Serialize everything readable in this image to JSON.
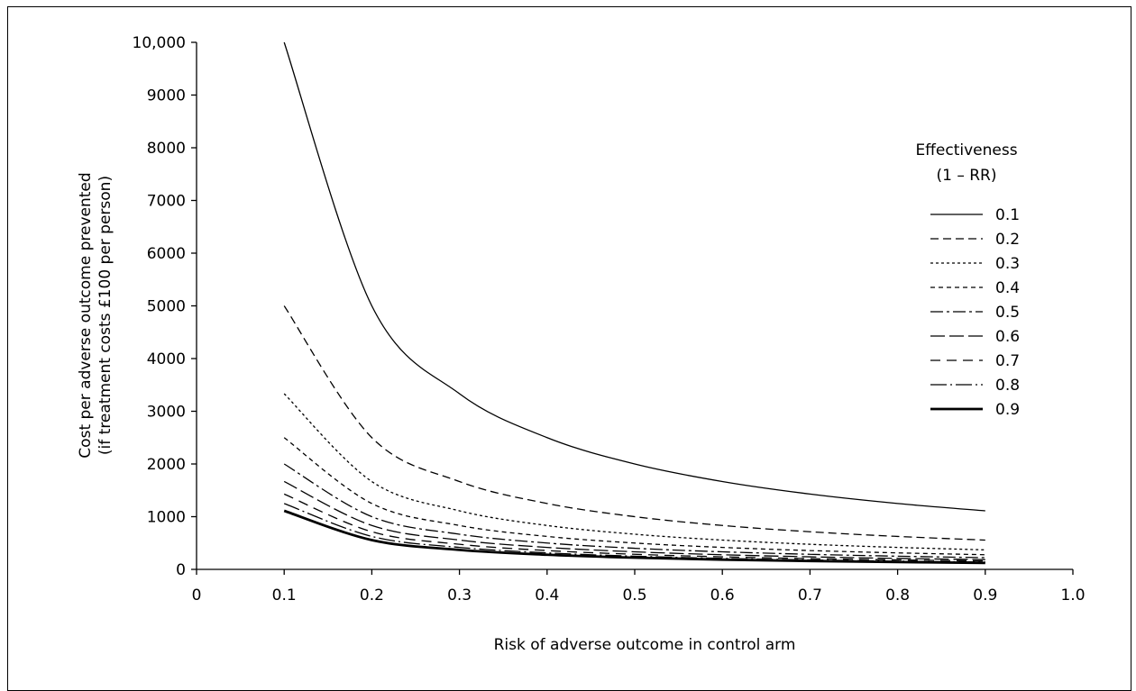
{
  "chart_data": {
    "type": "line",
    "title": "",
    "xlabel": "Risk of adverse outcome in control arm",
    "ylabel": [
      "Cost per adverse outcome prevented",
      "(if treatment costs £100 per person)"
    ],
    "xlim": [
      0,
      1.0
    ],
    "ylim": [
      0,
      10000
    ],
    "x_ticks": [
      0,
      0.1,
      0.2,
      0.3,
      0.4,
      0.5,
      0.6,
      0.7,
      0.8,
      0.9,
      1.0
    ],
    "x_tick_labels": [
      "0",
      "0.1",
      "0.2",
      "0.3",
      "0.4",
      "0.5",
      "0.6",
      "0.7",
      "0.8",
      "0.9",
      "1.0"
    ],
    "y_ticks": [
      0,
      1000,
      2000,
      3000,
      4000,
      5000,
      6000,
      7000,
      8000,
      9000,
      10000
    ],
    "y_tick_labels": [
      "0",
      "1000",
      "2000",
      "3000",
      "4000",
      "5000",
      "6000",
      "7000",
      "8000",
      "9000",
      "10,000"
    ],
    "grid": false,
    "legend": {
      "title_line1": "Effectiveness",
      "title_line2": "(1 – RR)",
      "placement": "right"
    },
    "x": [
      0.1,
      0.2,
      0.3,
      0.4,
      0.5,
      0.6,
      0.7,
      0.8,
      0.9
    ],
    "series": [
      {
        "name": "0.1",
        "values": [
          10000,
          5000,
          3333,
          2500,
          2000,
          1667,
          1429,
          1250,
          1111
        ]
      },
      {
        "name": "0.2",
        "values": [
          5000,
          2500,
          1667,
          1250,
          1000,
          833,
          714,
          625,
          556
        ]
      },
      {
        "name": "0.3",
        "values": [
          3333,
          1667,
          1111,
          833,
          667,
          556,
          476,
          417,
          370
        ]
      },
      {
        "name": "0.4",
        "values": [
          2500,
          1250,
          833,
          625,
          500,
          417,
          357,
          313,
          278
        ]
      },
      {
        "name": "0.5",
        "values": [
          2000,
          1000,
          667,
          500,
          400,
          333,
          286,
          250,
          222
        ]
      },
      {
        "name": "0.6",
        "values": [
          1667,
          833,
          556,
          417,
          333,
          278,
          238,
          208,
          185
        ]
      },
      {
        "name": "0.7",
        "values": [
          1429,
          714,
          476,
          357,
          286,
          238,
          204,
          179,
          159
        ]
      },
      {
        "name": "0.8",
        "values": [
          1250,
          625,
          417,
          313,
          250,
          208,
          179,
          156,
          139
        ]
      },
      {
        "name": "0.9",
        "values": [
          1111,
          556,
          370,
          278,
          222,
          185,
          159,
          139,
          123
        ]
      }
    ]
  }
}
